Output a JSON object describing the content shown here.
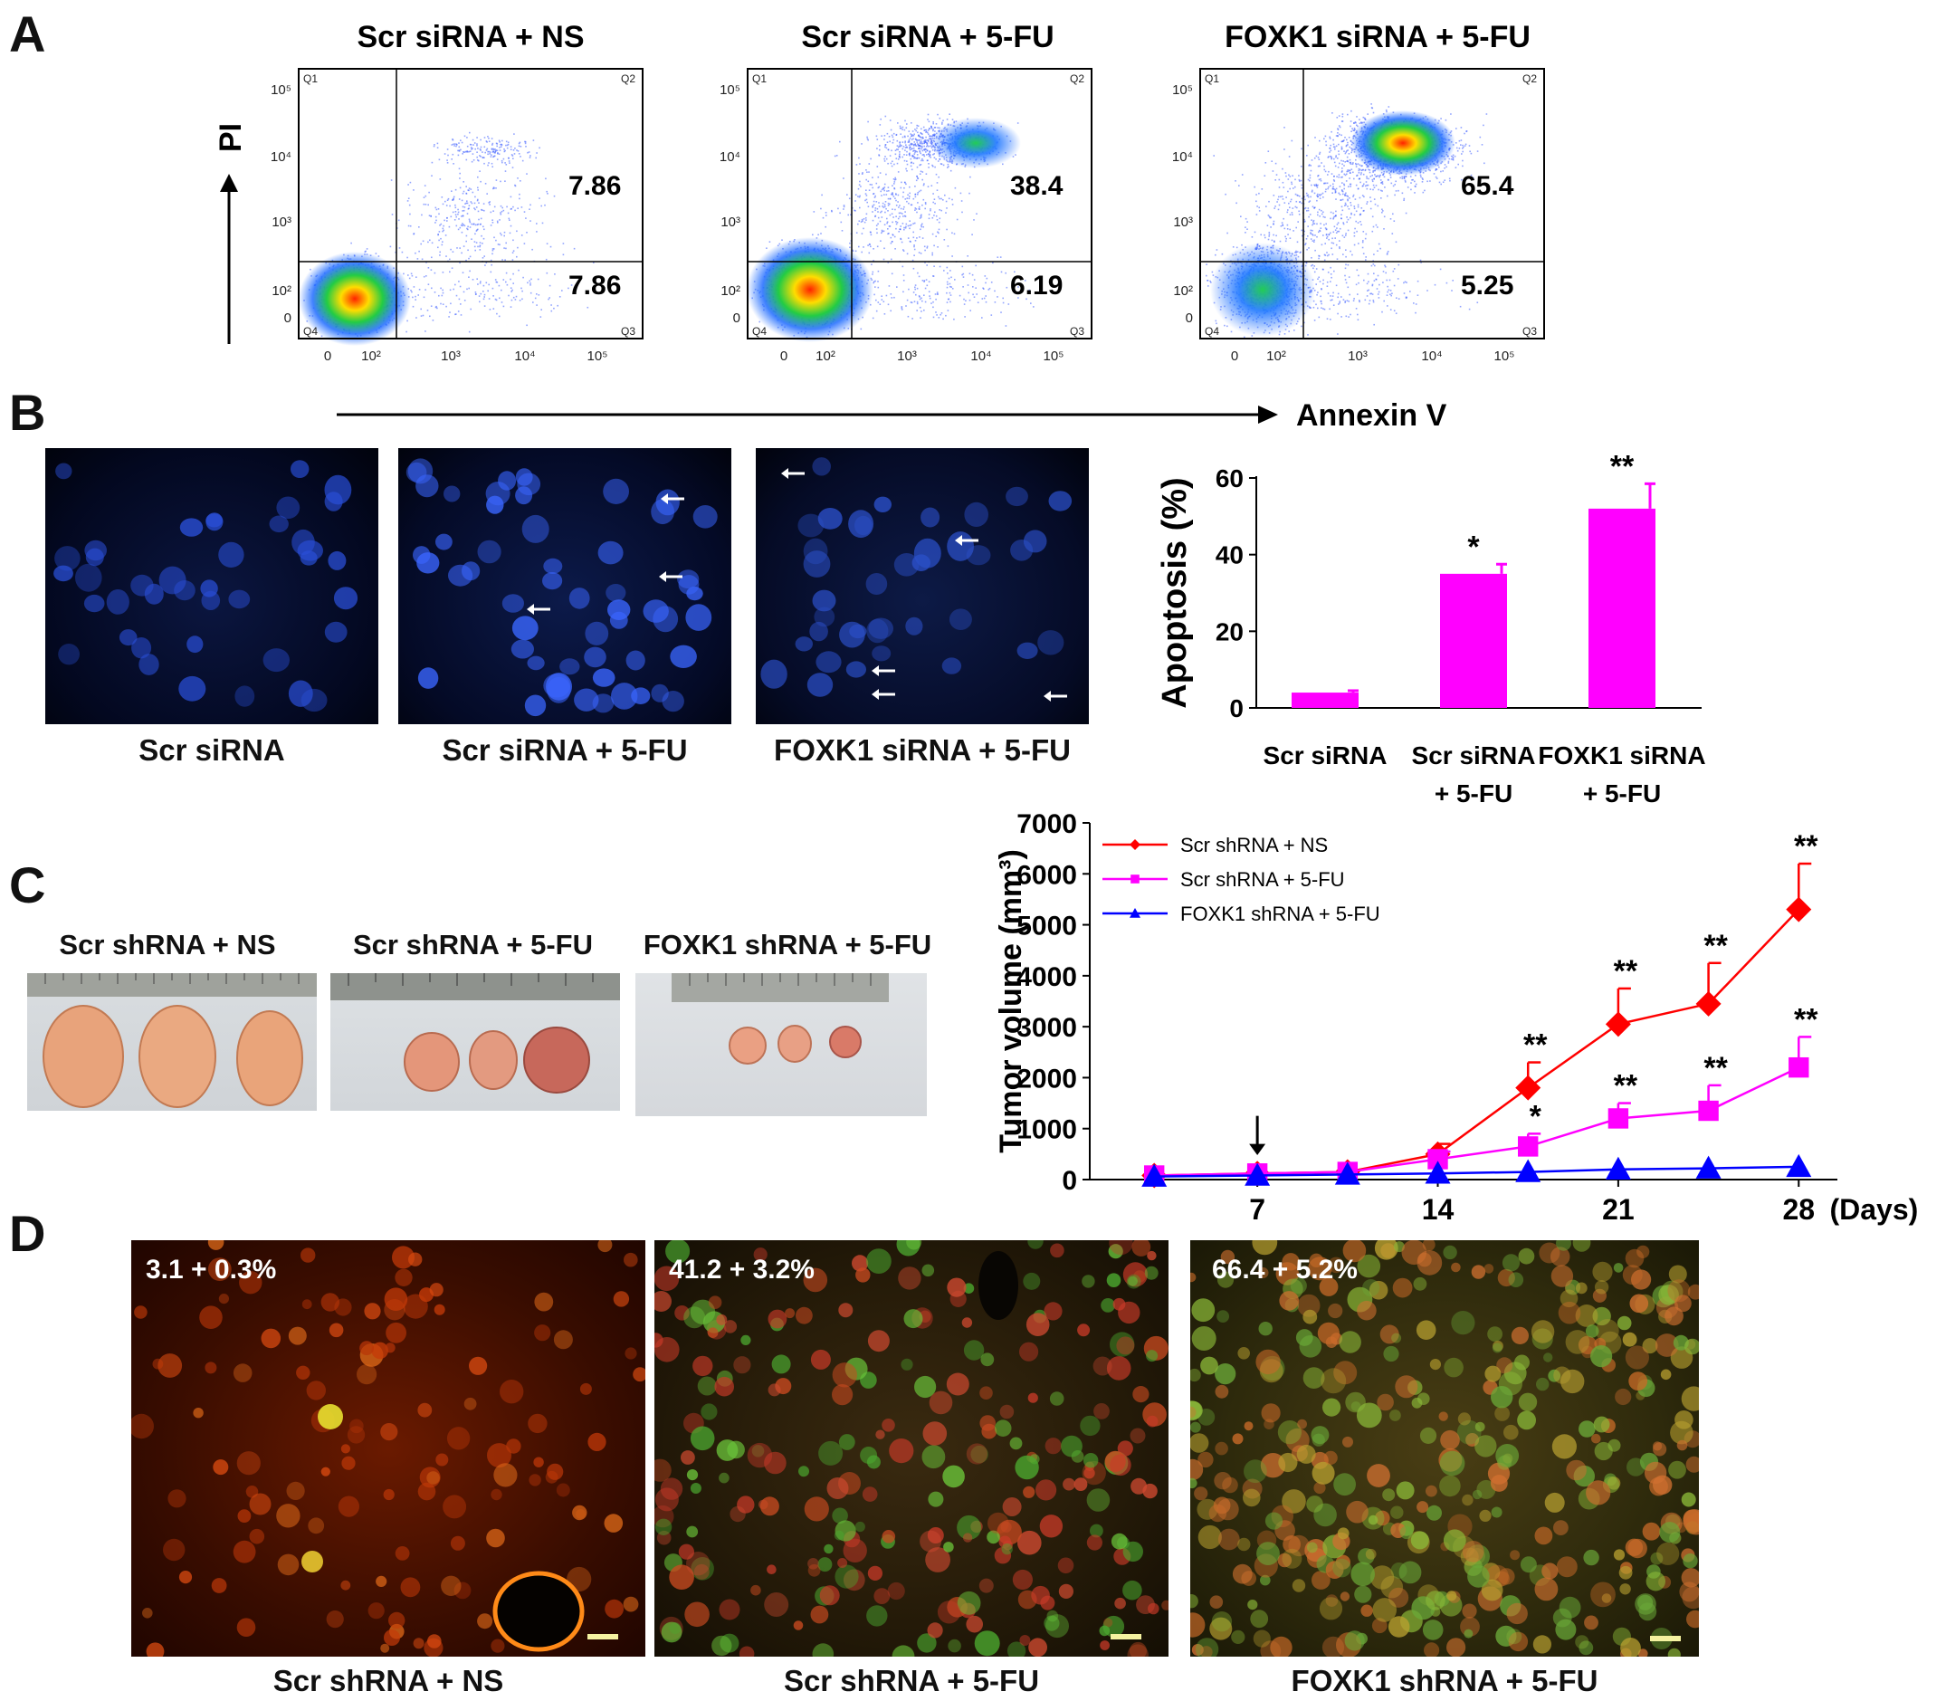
{
  "panels": {
    "A": {
      "letter": "A",
      "plots": [
        {
          "title": "Scr siRNA + NS",
          "q2_value": "7.86",
          "q3_value": "7.86"
        },
        {
          "title": "Scr siRNA + 5-FU",
          "q2_value": "38.4",
          "q3_value": "6.19"
        },
        {
          "title": "FOXK1 siRNA + 5-FU",
          "q2_value": "65.4",
          "q3_value": "5.25"
        }
      ],
      "quadrant_labels": [
        "Q1",
        "Q2",
        "Q3",
        "Q4"
      ],
      "y_ticks": [
        "10⁵",
        "10⁴",
        "10³",
        "10²",
        "0"
      ],
      "x_ticks": [
        "0",
        "10²",
        "10³",
        "10⁴",
        "10⁵"
      ],
      "y_axis_label": "PI",
      "x_axis_label": "Annexin V"
    },
    "B": {
      "letter": "B",
      "image_captions": [
        "Scr siRNA",
        "Scr siRNA + 5-FU",
        "FOXK1 siRNA + 5-FU"
      ]
    },
    "C": {
      "letter": "C",
      "photo_captions": [
        "Scr shRNA + NS",
        "Scr shRNA + 5-FU",
        "FOXK1 shRNA + 5-FU"
      ]
    },
    "D": {
      "letter": "D",
      "overlay_values": [
        "3.1 + 0.3%",
        "41.2 + 3.2%",
        "66.4 + 5.2%"
      ],
      "captions": [
        "Scr shRNA + NS",
        "Scr shRNA + 5-FU",
        "FOXK1 shRNA + 5-FU"
      ]
    }
  },
  "chart_data": [
    {
      "type": "bar",
      "categories": [
        "Scr siRNA",
        "Scr siRNA + 5-FU",
        "FOXK1 siRNA + 5-FU"
      ],
      "category_lines": [
        [
          "Scr siRNA"
        ],
        [
          "Scr siRNA",
          "+ 5-FU"
        ],
        [
          "FOXK1 siRNA",
          "+ 5-FU"
        ]
      ],
      "values": [
        4,
        35,
        52
      ],
      "errors": [
        0.5,
        2.5,
        6.5
      ],
      "significance": [
        "",
        "*",
        "**"
      ],
      "ylabel": "Apoptosis (%)",
      "yticks": [
        0,
        20,
        40,
        60
      ],
      "ylim": [
        0,
        60
      ],
      "bar_color": "#ff00ff",
      "grid": false
    },
    {
      "type": "line",
      "ylabel": "Tumor volume (mm³)",
      "x_unit_label": "(Days)",
      "x_tick_values": [
        7,
        14,
        21,
        28
      ],
      "yticks": [
        0,
        1000,
        2000,
        3000,
        4000,
        5000,
        6000,
        7000
      ],
      "ylim": [
        0,
        7000
      ],
      "legend_position": "top-left",
      "treatment_arrow_day": 7,
      "series": [
        {
          "name": "Scr shRNA + NS",
          "color": "#ff0000",
          "marker": "diamond",
          "x": [
            3,
            7,
            10.5,
            14,
            17.5,
            21,
            24.5,
            28
          ],
          "y": [
            80,
            120,
            150,
            500,
            1800,
            3050,
            3450,
            5300
          ],
          "err": [
            0,
            0,
            0,
            200,
            500,
            700,
            800,
            900
          ],
          "sig": [
            "",
            "",
            "",
            "",
            "**",
            "**",
            "**",
            "**"
          ]
        },
        {
          "name": "Scr shRNA + 5-FU",
          "color": "#ff00ff",
          "marker": "square",
          "x": [
            3,
            7,
            10.5,
            14,
            17.5,
            21,
            24.5,
            28
          ],
          "y": [
            80,
            120,
            150,
            400,
            650,
            1200,
            1350,
            2200
          ],
          "err": [
            0,
            0,
            0,
            150,
            250,
            300,
            500,
            600
          ],
          "sig": [
            "",
            "",
            "",
            "",
            "*",
            "**",
            "**",
            "**"
          ]
        },
        {
          "name": "FOXK1 shRNA + 5-FU",
          "color": "#0000ff",
          "marker": "triangle",
          "x": [
            3,
            7,
            10.5,
            14,
            17.5,
            21,
            24.5,
            28
          ],
          "y": [
            60,
            80,
            100,
            120,
            150,
            200,
            220,
            250
          ],
          "err": [
            0,
            0,
            0,
            0,
            0,
            0,
            0,
            0
          ],
          "sig": [
            "",
            "",
            "",
            "",
            "",
            "",
            "",
            ""
          ]
        }
      ]
    }
  ]
}
